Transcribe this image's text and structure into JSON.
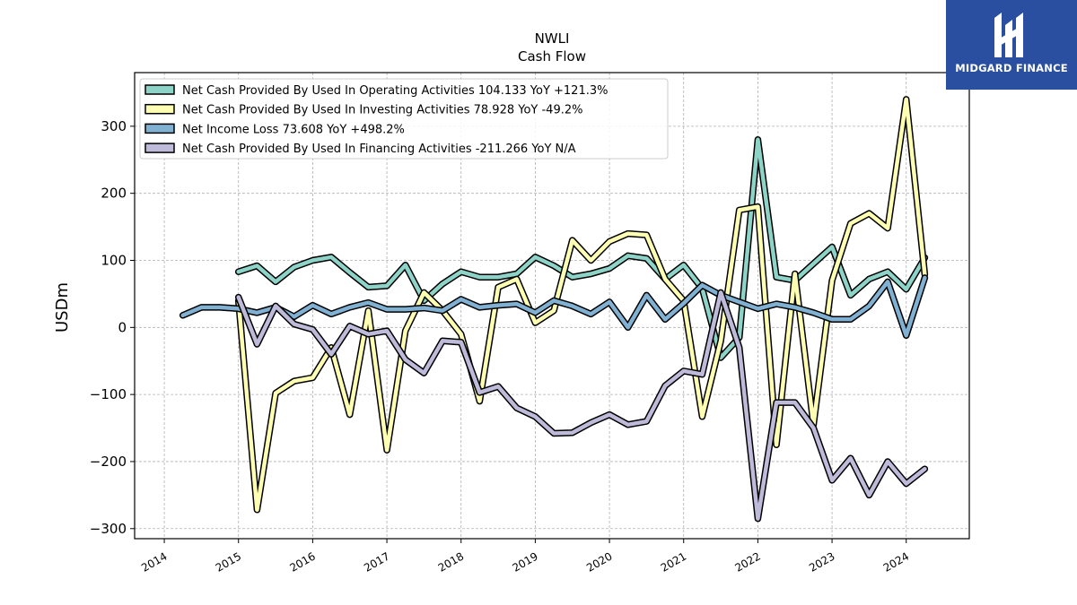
{
  "brand": {
    "name": "MIDGARD FINANCE",
    "bg_color": "#2a4fa0"
  },
  "chart_data": {
    "type": "line",
    "title": "NWLI",
    "subtitle": "Cash Flow",
    "xlabel": "",
    "ylabel": "USDm",
    "xlim": [
      2013.6,
      2024.85
    ],
    "ylim": [
      -315,
      380
    ],
    "x_ticks": [
      "2014",
      "2015",
      "2016",
      "2017",
      "2018",
      "2019",
      "2020",
      "2021",
      "2022",
      "2023",
      "2024"
    ],
    "y_ticks": [
      300,
      200,
      100,
      0,
      -100,
      -200,
      -300
    ],
    "y_tick_labels": [
      "300",
      "200",
      "100",
      "0",
      "−100",
      "−200",
      "−300"
    ],
    "grid": true,
    "legend_position": "top-left",
    "series": [
      {
        "name": "Net Cash Provided By Used In Operating Activities",
        "legend_label": "Net Cash Provided By Used In Operating Activities  104.133 YoY +121.3%",
        "color": "#8dd3c7",
        "x": [
          2015.0,
          2015.25,
          2015.5,
          2015.75,
          2016.0,
          2016.25,
          2016.5,
          2016.75,
          2017.0,
          2017.25,
          2017.5,
          2017.75,
          2018.0,
          2018.25,
          2018.5,
          2018.75,
          2019.0,
          2019.25,
          2019.5,
          2019.75,
          2020.0,
          2020.25,
          2020.5,
          2020.75,
          2021.0,
          2021.25,
          2021.5,
          2021.75,
          2022.0,
          2022.25,
          2022.5,
          2022.75,
          2023.0,
          2023.25,
          2023.5,
          2023.75,
          2024.0,
          2024.25
        ],
        "values": [
          83,
          92,
          68,
          90,
          100,
          105,
          82,
          60,
          62,
          93,
          40,
          65,
          83,
          75,
          75,
          80,
          105,
          92,
          75,
          80,
          88,
          107,
          103,
          72,
          93,
          58,
          -45,
          -15,
          280,
          75,
          70,
          95,
          120,
          48,
          72,
          83,
          57,
          104
        ]
      },
      {
        "name": "Net Cash Provided By Used In Investing Activities",
        "legend_label": "Net Cash Provided By Used In Investing Activities  78.928 YoY -49.2%",
        "color": "#ffffb3",
        "x": [
          2015.0,
          2015.25,
          2015.5,
          2015.75,
          2016.0,
          2016.25,
          2016.5,
          2016.75,
          2017.0,
          2017.25,
          2017.5,
          2017.75,
          2018.0,
          2018.25,
          2018.5,
          2018.75,
          2019.0,
          2019.25,
          2019.5,
          2019.75,
          2020.0,
          2020.25,
          2020.5,
          2020.75,
          2021.0,
          2021.25,
          2021.5,
          2021.75,
          2022.0,
          2022.25,
          2022.5,
          2022.75,
          2023.0,
          2023.25,
          2023.5,
          2023.75,
          2024.0,
          2024.25
        ],
        "values": [
          40,
          -272,
          -98,
          -80,
          -75,
          -30,
          -130,
          25,
          -183,
          -5,
          52,
          25,
          -10,
          -110,
          60,
          72,
          7,
          25,
          130,
          100,
          128,
          140,
          138,
          72,
          40,
          -133,
          -20,
          175,
          180,
          -175,
          80,
          -145,
          70,
          155,
          170,
          148,
          340,
          79
        ]
      },
      {
        "name": "Net Income Loss",
        "legend_label": "Net Income Loss  73.608 YoY +498.2%",
        "color": "#80b1d3",
        "x": [
          2014.25,
          2014.5,
          2014.75,
          2015.0,
          2015.25,
          2015.5,
          2015.75,
          2016.0,
          2016.25,
          2016.5,
          2016.75,
          2017.0,
          2017.25,
          2017.5,
          2017.75,
          2018.0,
          2018.25,
          2018.5,
          2018.75,
          2019.0,
          2019.25,
          2019.5,
          2019.75,
          2020.0,
          2020.25,
          2020.5,
          2020.75,
          2021.0,
          2021.25,
          2021.5,
          2021.75,
          2022.0,
          2022.25,
          2022.5,
          2022.75,
          2023.0,
          2023.25,
          2023.5,
          2023.75,
          2024.0,
          2024.25
        ],
        "values": [
          18,
          30,
          30,
          28,
          22,
          30,
          16,
          33,
          20,
          30,
          37,
          27,
          27,
          29,
          25,
          42,
          30,
          33,
          35,
          22,
          40,
          32,
          20,
          38,
          0,
          48,
          12,
          36,
          63,
          48,
          38,
          28,
          35,
          30,
          22,
          12,
          12,
          32,
          68,
          -12,
          74
        ]
      },
      {
        "name": "Net Cash Provided By Used In Financing Activities",
        "legend_label": "Net Cash Provided By Used In Financing Activities  -211.266 YoY N/A",
        "color": "#bebada",
        "x": [
          2015.0,
          2015.25,
          2015.5,
          2015.75,
          2016.0,
          2016.25,
          2016.5,
          2016.75,
          2017.0,
          2017.25,
          2017.5,
          2017.75,
          2018.0,
          2018.25,
          2018.5,
          2018.75,
          2019.0,
          2019.25,
          2019.5,
          2019.75,
          2020.0,
          2020.25,
          2020.5,
          2020.75,
          2021.0,
          2021.25,
          2021.5,
          2021.75,
          2022.0,
          2022.25,
          2022.5,
          2022.75,
          2023.0,
          2023.25,
          2023.5,
          2023.75,
          2024.0,
          2024.25
        ],
        "values": [
          45,
          -25,
          32,
          5,
          -3,
          -40,
          2,
          -10,
          -5,
          -48,
          -68,
          -20,
          -22,
          -97,
          -88,
          -120,
          -133,
          -158,
          -157,
          -142,
          -130,
          -145,
          -140,
          -87,
          -65,
          -70,
          52,
          -30,
          -285,
          -112,
          -112,
          -150,
          -228,
          -195,
          -250,
          -200,
          -233,
          -211
        ]
      }
    ]
  }
}
